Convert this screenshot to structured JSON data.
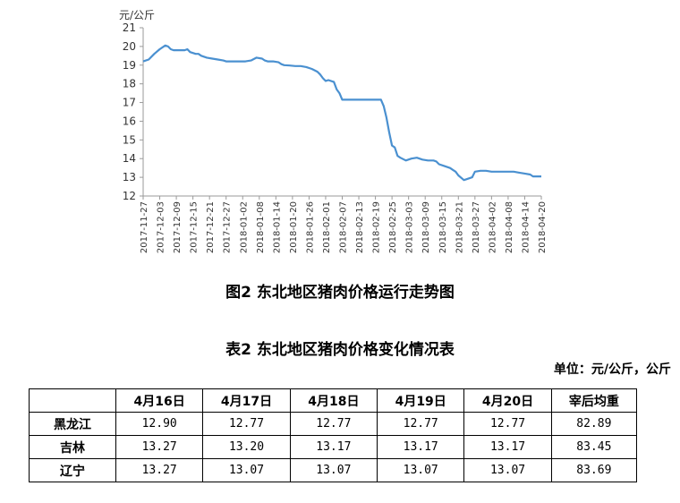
{
  "chart_data": {
    "type": "line",
    "unit_label": "元/公斤",
    "ylim": [
      12,
      21
    ],
    "yticks": [
      12,
      13,
      14,
      15,
      16,
      17,
      18,
      19,
      20,
      21
    ],
    "grid": false,
    "line_color": "#4A90D0",
    "x_tick_labels": [
      "2017-11-27",
      "2017-12-03",
      "2017-12-09",
      "2017-12-15",
      "2017-12-21",
      "2017-12-27",
      "2018-01-02",
      "2018-01-08",
      "2018-01-14",
      "2018-01-20",
      "2018-01-26",
      "2018-02-01",
      "2018-02-07",
      "2018-02-13",
      "2018-02-19",
      "2018-02-25",
      "2018-03-03",
      "2018-03-09",
      "2018-03-15",
      "2018-03-21",
      "2018-03-27",
      "2018-04-02",
      "2018-04-08",
      "2018-04-14",
      "2018-04-20"
    ],
    "series": [
      {
        "x": [
          "2017-11-27",
          "2017-11-29",
          "2017-12-01",
          "2017-12-03",
          "2017-12-05",
          "2017-12-06",
          "2017-12-07",
          "2017-12-08",
          "2017-12-10",
          "2017-12-12",
          "2017-12-13",
          "2017-12-14",
          "2017-12-16",
          "2017-12-17",
          "2017-12-18",
          "2017-12-20",
          "2017-12-22",
          "2017-12-24",
          "2017-12-26",
          "2017-12-27",
          "2017-12-29",
          "2018-01-01",
          "2018-01-03",
          "2018-01-05",
          "2018-01-07",
          "2018-01-09",
          "2018-01-10",
          "2018-01-11",
          "2018-01-13",
          "2018-01-15",
          "2018-01-16",
          "2018-01-17",
          "2018-01-19",
          "2018-01-21",
          "2018-01-23",
          "2018-01-25",
          "2018-01-27",
          "2018-01-29",
          "2018-01-30",
          "2018-01-31",
          "2018-02-01",
          "2018-02-02",
          "2018-02-04",
          "2018-02-05",
          "2018-02-06",
          "2018-02-07",
          "2018-02-09",
          "2018-02-12",
          "2018-02-15",
          "2018-02-18",
          "2018-02-21",
          "2018-02-22",
          "2018-02-23",
          "2018-02-24",
          "2018-02-25",
          "2018-02-26",
          "2018-02-27",
          "2018-02-28",
          "2018-03-02",
          "2018-03-04",
          "2018-03-06",
          "2018-03-08",
          "2018-03-10",
          "2018-03-12",
          "2018-03-13",
          "2018-03-14",
          "2018-03-16",
          "2018-03-18",
          "2018-03-19",
          "2018-03-20",
          "2018-03-21",
          "2018-03-23",
          "2018-03-24",
          "2018-03-26",
          "2018-03-27",
          "2018-03-29",
          "2018-03-31",
          "2018-04-02",
          "2018-04-04",
          "2018-04-06",
          "2018-04-08",
          "2018-04-10",
          "2018-04-12",
          "2018-04-14",
          "2018-04-16",
          "2018-04-17",
          "2018-04-20"
        ],
        "values": [
          19.2,
          19.3,
          19.6,
          19.85,
          20.05,
          20.0,
          19.85,
          19.8,
          19.8,
          19.8,
          19.85,
          19.7,
          19.6,
          19.6,
          19.5,
          19.4,
          19.35,
          19.3,
          19.25,
          19.2,
          19.2,
          19.2,
          19.2,
          19.25,
          19.4,
          19.35,
          19.25,
          19.2,
          19.2,
          19.15,
          19.05,
          19.0,
          18.98,
          18.95,
          18.95,
          18.9,
          18.8,
          18.65,
          18.5,
          18.3,
          18.15,
          18.2,
          18.1,
          17.7,
          17.5,
          17.15,
          17.15,
          17.15,
          17.15,
          17.15,
          17.15,
          16.8,
          16.2,
          15.4,
          14.7,
          14.6,
          14.15,
          14.05,
          13.9,
          14.0,
          14.05,
          13.95,
          13.9,
          13.9,
          13.85,
          13.7,
          13.6,
          13.5,
          13.4,
          13.3,
          13.1,
          12.85,
          12.9,
          13.0,
          13.3,
          13.35,
          13.35,
          13.3,
          13.3,
          13.3,
          13.3,
          13.3,
          13.25,
          13.2,
          13.15,
          13.05,
          13.05
        ]
      }
    ]
  },
  "figure_caption": "图2 东北地区猪肉价格运行走势图",
  "table_caption": "表2 东北地区猪肉价格变化情况表",
  "unit_note": "单位：元/公斤，公斤",
  "table": {
    "headers": [
      "",
      "4月16日",
      "4月17日",
      "4月18日",
      "4月19日",
      "4月20日",
      "宰后均重"
    ],
    "rows": [
      {
        "name": "黑龙江",
        "cells": [
          "12.90",
          "12.77",
          "12.77",
          "12.77",
          "12.77",
          "82.89"
        ]
      },
      {
        "name": "吉林",
        "cells": [
          "13.27",
          "13.20",
          "13.17",
          "13.17",
          "13.17",
          "83.45"
        ]
      },
      {
        "name": "辽宁",
        "cells": [
          "13.27",
          "13.07",
          "13.07",
          "13.07",
          "13.07",
          "83.69"
        ]
      }
    ]
  }
}
